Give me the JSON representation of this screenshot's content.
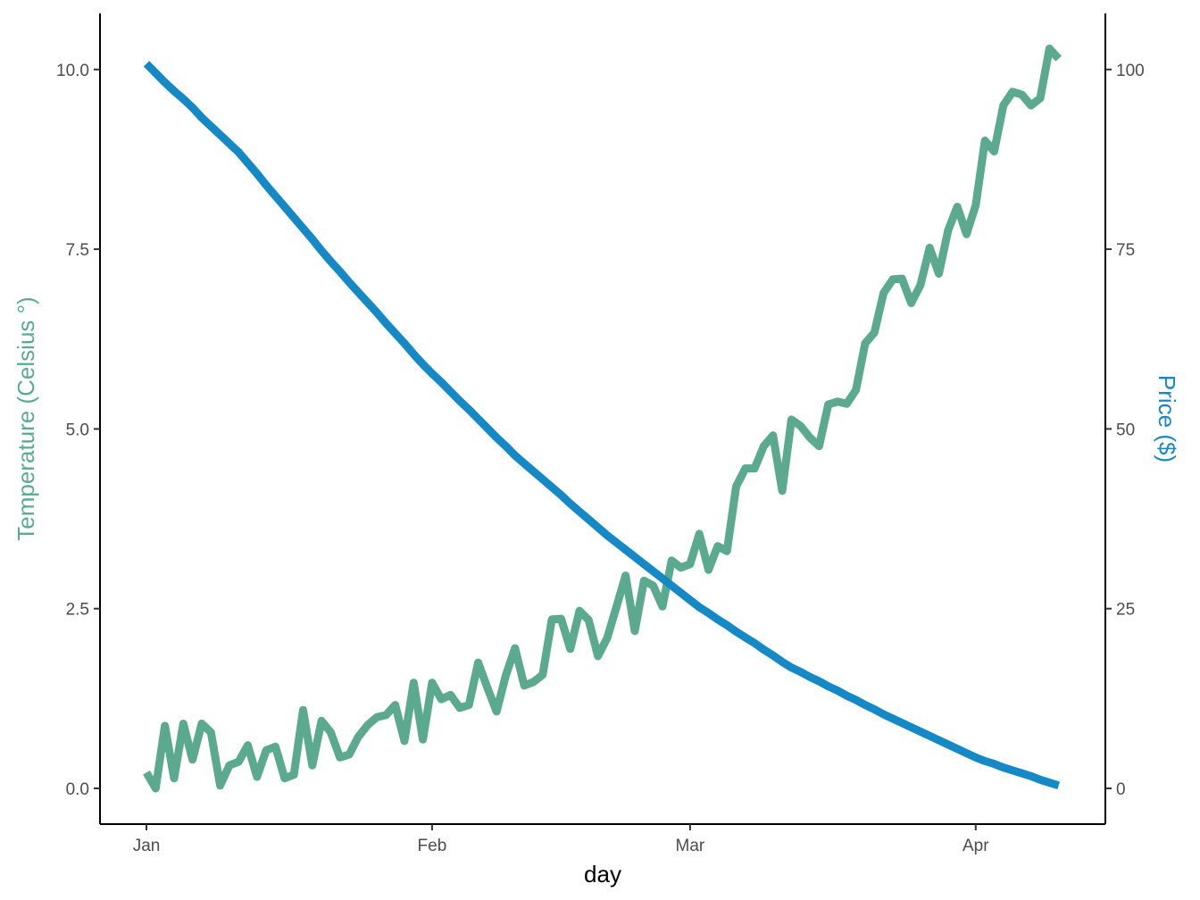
{
  "chart_data": {
    "type": "line",
    "x_label": "day",
    "y_label": "Temperature (Celsius °)",
    "y2_label": "Price ($)",
    "x": [
      0,
      1,
      2,
      3,
      4,
      5,
      6,
      7,
      8,
      9,
      10,
      11,
      12,
      13,
      14,
      15,
      16,
      17,
      18,
      19,
      20,
      21,
      22,
      23,
      24,
      25,
      26,
      27,
      28,
      29,
      30,
      31,
      32,
      33,
      34,
      35,
      36,
      37,
      38,
      39,
      40,
      41,
      42,
      43,
      44,
      45,
      46,
      47,
      48,
      49,
      50,
      51,
      52,
      53,
      54,
      55,
      56,
      57,
      58,
      59,
      60,
      61,
      62,
      63,
      64,
      65,
      66,
      67,
      68,
      69,
      70,
      71,
      72,
      73,
      74,
      75,
      76,
      77,
      78,
      79,
      80,
      81,
      82,
      83,
      84,
      85,
      86,
      87,
      88,
      89,
      90,
      91,
      92,
      93,
      94,
      95,
      96,
      97,
      98,
      99
    ],
    "xlim": [
      -5.04,
      104.07
    ],
    "xticks": [
      {
        "value": 0,
        "label": "Jan"
      },
      {
        "value": 31,
        "label": "Feb"
      },
      {
        "value": 59,
        "label": "Mar"
      },
      {
        "value": 90,
        "label": "Apr"
      }
    ],
    "ylim": [
      -0.497,
      10.78
    ],
    "yticks": [
      {
        "value": 0,
        "label": "0.0"
      },
      {
        "value": 2.5,
        "label": "2.5"
      },
      {
        "value": 5,
        "label": "5.0"
      },
      {
        "value": 7.5,
        "label": "7.5"
      },
      {
        "value": 10,
        "label": "10.0"
      }
    ],
    "y2lim": [
      -4.97,
      107.8
    ],
    "y2ticks": [
      0,
      25,
      50,
      75,
      100
    ],
    "series": [
      {
        "name": "Temperature",
        "color": "#5BAA8F",
        "axis": "y",
        "values": [
          0.22,
          0.0,
          0.87,
          0.14,
          0.9,
          0.4,
          0.9,
          0.78,
          0.04,
          0.32,
          0.37,
          0.6,
          0.16,
          0.53,
          0.58,
          0.14,
          0.19,
          1.09,
          0.32,
          0.94,
          0.78,
          0.43,
          0.47,
          0.72,
          0.88,
          0.99,
          1.02,
          1.16,
          0.66,
          1.47,
          0.68,
          1.47,
          1.24,
          1.3,
          1.12,
          1.16,
          1.75,
          1.4,
          1.07,
          1.57,
          1.95,
          1.43,
          1.48,
          1.58,
          2.35,
          2.36,
          1.94,
          2.47,
          2.34,
          1.84,
          2.09,
          2.52,
          2.96,
          2.19,
          2.89,
          2.82,
          2.53,
          3.17,
          3.07,
          3.12,
          3.54,
          3.04,
          3.37,
          3.3,
          4.2,
          4.45,
          4.45,
          4.76,
          4.91,
          4.14,
          5.13,
          5.04,
          4.88,
          4.76,
          5.34,
          5.38,
          5.35,
          5.54,
          6.19,
          6.34,
          6.89,
          7.08,
          7.09,
          6.75,
          7.0,
          7.52,
          7.16,
          7.76,
          8.09,
          7.71,
          8.11,
          9.01,
          8.86,
          9.5,
          9.69,
          9.65,
          9.5,
          9.6,
          10.29,
          10.15
        ]
      },
      {
        "name": "Price",
        "color": "#1589C6",
        "axis": "y2",
        "values": [
          100.8,
          99.5,
          98.2,
          97.0,
          95.9,
          94.7,
          93.3,
          92.1,
          90.9,
          89.7,
          88.5,
          87.0,
          85.5,
          83.9,
          82.4,
          80.9,
          79.4,
          77.9,
          76.4,
          74.8,
          73.3,
          71.9,
          70.4,
          69.0,
          67.6,
          66.2,
          64.7,
          63.3,
          61.9,
          60.4,
          59.0,
          57.7,
          56.5,
          55.2,
          53.9,
          52.7,
          51.4,
          50.1,
          48.8,
          47.6,
          46.3,
          45.2,
          44.1,
          43.0,
          41.9,
          40.8,
          39.6,
          38.5,
          37.4,
          36.3,
          35.2,
          34.2,
          33.2,
          32.2,
          31.2,
          30.2,
          29.2,
          28.2,
          27.2,
          26.2,
          25.2,
          24.4,
          23.5,
          22.7,
          21.8,
          21.0,
          20.2,
          19.3,
          18.5,
          17.6,
          16.8,
          16.2,
          15.5,
          14.9,
          14.2,
          13.6,
          12.9,
          12.3,
          11.6,
          11.0,
          10.3,
          9.7,
          9.1,
          8.5,
          7.9,
          7.3,
          6.7,
          6.1,
          5.5,
          4.9,
          4.3,
          3.8,
          3.4,
          2.9,
          2.5,
          2.1,
          1.7,
          1.2,
          0.8,
          0.4
        ]
      }
    ]
  }
}
